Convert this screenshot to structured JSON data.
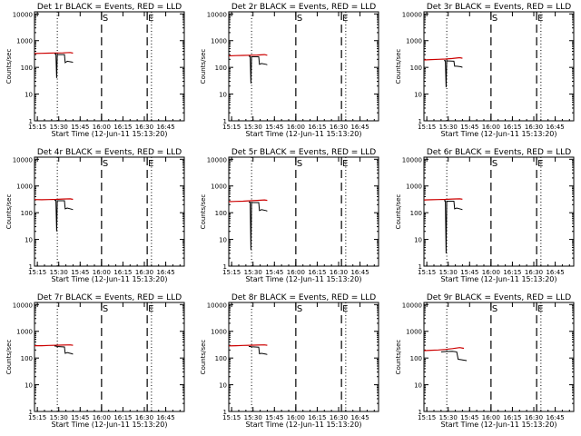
{
  "colors": {
    "events": "#000000",
    "lld": "#cc0000",
    "axes": "#000000",
    "background": "#ffffff"
  },
  "chart_data": [
    {
      "type": "line",
      "title": "Det 1r BLACK = Events, RED = LLD",
      "xlabel": "Start Time (12-Jun-11 15:13:20)",
      "ylabel": "Counts/sec",
      "ylog": true,
      "ylim": [
        1,
        12000
      ],
      "xlim": [
        "15:13",
        "16:58"
      ],
      "xticks": [
        "15:15",
        "15:30",
        "15:45",
        "16:00",
        "16:15",
        "16:30",
        "16:45"
      ],
      "yticks": [
        "1",
        "10",
        "100",
        "1000",
        "10000"
      ],
      "markers": [
        {
          "label": "",
          "time": "15:29",
          "style": "dotted"
        },
        {
          "label": "S",
          "time": "16:00",
          "style": "dashed"
        },
        {
          "label": "E",
          "time": "16:32",
          "style": "dashed"
        },
        {
          "label": "",
          "time": "16:35",
          "style": "dotted"
        }
      ],
      "series": [
        {
          "color": "red",
          "x": [
            "15:13",
            "15:18",
            "15:23",
            "15:28",
            "15:33",
            "15:38",
            "15:40"
          ],
          "y": [
            330,
            335,
            340,
            345,
            350,
            360,
            340
          ]
        },
        {
          "color": "black",
          "x": [
            "15:27",
            "15:28",
            "15:28.5",
            "15:29",
            "15:34",
            "15:34.5",
            "15:36",
            "15:39",
            "15:40"
          ],
          "y": [
            320,
            320,
            40,
            300,
            300,
            150,
            170,
            160,
            155
          ]
        }
      ]
    },
    {
      "type": "line",
      "title": "Det 2r BLACK = Events, RED = LLD",
      "xlabel": "Start Time (12-Jun-11 15:13:20)",
      "ylabel": "Counts/sec",
      "ylog": true,
      "ylim": [
        1,
        12000
      ],
      "xlim": [
        "15:13",
        "16:58"
      ],
      "xticks": [
        "15:15",
        "15:30",
        "15:45",
        "16:00",
        "16:15",
        "16:30",
        "16:45"
      ],
      "yticks": [
        "1",
        "10",
        "100",
        "1000",
        "10000"
      ],
      "markers": [
        {
          "label": "",
          "time": "15:29",
          "style": "dotted"
        },
        {
          "label": "S",
          "time": "16:00",
          "style": "dashed"
        },
        {
          "label": "E",
          "time": "16:32",
          "style": "dashed"
        },
        {
          "label": "",
          "time": "16:35",
          "style": "dotted"
        }
      ],
      "series": [
        {
          "color": "red",
          "x": [
            "15:13",
            "15:18",
            "15:23",
            "15:28",
            "15:33",
            "15:38",
            "15:40"
          ],
          "y": [
            270,
            275,
            280,
            285,
            290,
            300,
            285
          ]
        },
        {
          "color": "black",
          "x": [
            "15:27",
            "15:28",
            "15:28.5",
            "15:29",
            "15:34",
            "15:34.5",
            "15:36",
            "15:39",
            "15:40"
          ],
          "y": [
            260,
            260,
            25,
            250,
            250,
            130,
            140,
            130,
            125
          ]
        }
      ]
    },
    {
      "type": "line",
      "title": "Det 3r BLACK = Events, RED = LLD",
      "xlabel": "Start Time (12-Jun-11 15:13:20)",
      "ylabel": "Counts/sec",
      "ylog": true,
      "ylim": [
        1,
        12000
      ],
      "xlim": [
        "15:13",
        "16:58"
      ],
      "xticks": [
        "15:15",
        "15:30",
        "15:45",
        "16:00",
        "16:15",
        "16:30",
        "16:45"
      ],
      "yticks": [
        "1",
        "10",
        "100",
        "1000",
        "10000"
      ],
      "markers": [
        {
          "label": "",
          "time": "15:29",
          "style": "dotted"
        },
        {
          "label": "S",
          "time": "16:00",
          "style": "dashed"
        },
        {
          "label": "E",
          "time": "16:32",
          "style": "dashed"
        },
        {
          "label": "",
          "time": "16:35",
          "style": "dotted"
        }
      ],
      "series": [
        {
          "color": "red",
          "x": [
            "15:13",
            "15:18",
            "15:23",
            "15:28",
            "15:33",
            "15:38",
            "15:40"
          ],
          "y": [
            190,
            195,
            200,
            205,
            215,
            230,
            220
          ]
        },
        {
          "color": "black",
          "x": [
            "15:27",
            "15:28",
            "15:28.5",
            "15:29",
            "15:34",
            "15:34.5",
            "15:36",
            "15:39",
            "15:40"
          ],
          "y": [
            180,
            180,
            18,
            175,
            170,
            110,
            110,
            105,
            100
          ]
        }
      ]
    },
    {
      "type": "line",
      "title": "Det 4r BLACK = Events, RED = LLD",
      "xlabel": "Start Time (12-Jun-11 15:13:20)",
      "ylabel": "Counts/sec",
      "ylog": true,
      "ylim": [
        1,
        12000
      ],
      "xlim": [
        "15:13",
        "16:58"
      ],
      "xticks": [
        "15:15",
        "15:30",
        "15:45",
        "16:00",
        "16:15",
        "16:30",
        "16:45"
      ],
      "yticks": [
        "1",
        "10",
        "100",
        "1000",
        "10000"
      ],
      "markers": [
        {
          "label": "",
          "time": "15:29",
          "style": "dotted"
        },
        {
          "label": "S",
          "time": "16:00",
          "style": "dashed"
        },
        {
          "label": "E",
          "time": "16:32",
          "style": "dashed"
        },
        {
          "label": "",
          "time": "16:35",
          "style": "dotted"
        }
      ],
      "series": [
        {
          "color": "red",
          "x": [
            "15:13",
            "15:18",
            "15:23",
            "15:28",
            "15:33",
            "15:38",
            "15:40"
          ],
          "y": [
            310,
            305,
            310,
            315,
            325,
            330,
            315
          ]
        },
        {
          "color": "black",
          "x": [
            "15:27",
            "15:28",
            "15:28.5",
            "15:29",
            "15:34",
            "15:34.5",
            "15:36",
            "15:39",
            "15:40"
          ],
          "y": [
            290,
            290,
            20,
            280,
            280,
            140,
            150,
            135,
            130
          ]
        }
      ]
    },
    {
      "type": "line",
      "title": "Det 5r BLACK = Events, RED = LLD",
      "xlabel": "Start Time (12-Jun-11 15:13:20)",
      "ylabel": "Counts/sec",
      "ylog": true,
      "ylim": [
        1,
        12000
      ],
      "xlim": [
        "15:13",
        "16:58"
      ],
      "xticks": [
        "15:15",
        "15:30",
        "15:45",
        "16:00",
        "16:15",
        "16:30",
        "16:45"
      ],
      "yticks": [
        "1",
        "10",
        "100",
        "1000",
        "10000"
      ],
      "markers": [
        {
          "label": "",
          "time": "15:29",
          "style": "dotted"
        },
        {
          "label": "S",
          "time": "16:00",
          "style": "dashed"
        },
        {
          "label": "E",
          "time": "16:32",
          "style": "dashed"
        },
        {
          "label": "",
          "time": "16:35",
          "style": "dotted"
        }
      ],
      "series": [
        {
          "color": "red",
          "x": [
            "15:13",
            "15:18",
            "15:23",
            "15:28",
            "15:33",
            "15:38",
            "15:40"
          ],
          "y": [
            260,
            265,
            270,
            280,
            290,
            300,
            290
          ]
        },
        {
          "color": "black",
          "x": [
            "15:27",
            "15:28",
            "15:28.5",
            "15:29",
            "15:34",
            "15:34.5",
            "15:36",
            "15:39",
            "15:40"
          ],
          "y": [
            250,
            250,
            4,
            240,
            240,
            120,
            130,
            120,
            115
          ]
        }
      ]
    },
    {
      "type": "line",
      "title": "Det 6r BLACK = Events, RED = LLD",
      "xlabel": "Start Time (12-Jun-11 15:13:20)",
      "ylabel": "Counts/sec",
      "ylog": true,
      "ylim": [
        1,
        12000
      ],
      "xlim": [
        "15:13",
        "16:58"
      ],
      "xticks": [
        "15:15",
        "15:30",
        "15:45",
        "16:00",
        "16:15",
        "16:30",
        "16:45"
      ],
      "yticks": [
        "1",
        "10",
        "100",
        "1000",
        "10000"
      ],
      "markers": [
        {
          "label": "",
          "time": "15:29",
          "style": "dotted"
        },
        {
          "label": "S",
          "time": "16:00",
          "style": "dashed"
        },
        {
          "label": "E",
          "time": "16:32",
          "style": "dashed"
        },
        {
          "label": "",
          "time": "16:35",
          "style": "dotted"
        }
      ],
      "series": [
        {
          "color": "red",
          "x": [
            "15:13",
            "15:18",
            "15:23",
            "15:28",
            "15:33",
            "15:38",
            "15:40"
          ],
          "y": [
            300,
            305,
            310,
            315,
            325,
            330,
            320
          ]
        },
        {
          "color": "black",
          "x": [
            "15:27",
            "15:28",
            "15:28.5",
            "15:29",
            "15:34",
            "15:34.5",
            "15:36",
            "15:39",
            "15:40"
          ],
          "y": [
            280,
            280,
            3,
            270,
            270,
            140,
            150,
            135,
            130
          ]
        }
      ]
    },
    {
      "type": "line",
      "title": "Det 7r BLACK = Events, RED = LLD",
      "xlabel": "Start Time (12-Jun-11 15:13:20)",
      "ylabel": "Counts/sec",
      "ylog": true,
      "ylim": [
        1,
        12000
      ],
      "xlim": [
        "15:13",
        "16:58"
      ],
      "xticks": [
        "15:15",
        "15:30",
        "15:45",
        "16:00",
        "16:15",
        "16:30",
        "16:45"
      ],
      "yticks": [
        "1",
        "10",
        "100",
        "1000",
        "10000"
      ],
      "markers": [
        {
          "label": "",
          "time": "15:29",
          "style": "dotted"
        },
        {
          "label": "S",
          "time": "16:00",
          "style": "dashed"
        },
        {
          "label": "E",
          "time": "16:32",
          "style": "dashed"
        },
        {
          "label": "",
          "time": "16:35",
          "style": "dotted"
        }
      ],
      "series": [
        {
          "color": "red",
          "x": [
            "15:13",
            "15:18",
            "15:23",
            "15:28",
            "15:33",
            "15:38",
            "15:40"
          ],
          "y": [
            290,
            290,
            295,
            300,
            305,
            310,
            300
          ]
        },
        {
          "color": "black",
          "x": [
            "15:27",
            "15:28",
            "15:29",
            "15:34",
            "15:34.5",
            "15:36",
            "15:39",
            "15:40"
          ],
          "y": [
            280,
            280,
            270,
            260,
            150,
            160,
            145,
            140
          ]
        }
      ]
    },
    {
      "type": "line",
      "title": "Det 8r BLACK = Events, RED = LLD",
      "xlabel": "Start Time (12-Jun-11 15:13:20)",
      "ylabel": "Counts/sec",
      "ylog": true,
      "ylim": [
        1,
        12000
      ],
      "xlim": [
        "15:13",
        "16:58"
      ],
      "xticks": [
        "15:15",
        "15:30",
        "15:45",
        "16:00",
        "16:15",
        "16:30",
        "16:45"
      ],
      "yticks": [
        "1",
        "10",
        "100",
        "1000",
        "10000"
      ],
      "markers": [
        {
          "label": "",
          "time": "15:29",
          "style": "dotted"
        },
        {
          "label": "S",
          "time": "16:00",
          "style": "dashed"
        },
        {
          "label": "E",
          "time": "16:32",
          "style": "dashed"
        },
        {
          "label": "",
          "time": "16:35",
          "style": "dotted"
        }
      ],
      "series": [
        {
          "color": "red",
          "x": [
            "15:13",
            "15:18",
            "15:23",
            "15:28",
            "15:33",
            "15:38",
            "15:40"
          ],
          "y": [
            285,
            290,
            295,
            300,
            305,
            310,
            300
          ]
        },
        {
          "color": "black",
          "x": [
            "15:27",
            "15:28",
            "15:29",
            "15:34",
            "15:34.5",
            "15:36",
            "15:39",
            "15:40"
          ],
          "y": [
            270,
            270,
            265,
            255,
            145,
            150,
            140,
            135
          ]
        }
      ]
    },
    {
      "type": "line",
      "title": "Det 9r BLACK = Events, RED = LLD",
      "xlabel": "Start Time (12-Jun-11 15:13:20)",
      "ylabel": "Counts/sec",
      "ylog": true,
      "ylim": [
        1,
        12000
      ],
      "xlim": [
        "15:13",
        "16:58"
      ],
      "xticks": [
        "15:15",
        "15:30",
        "15:45",
        "16:00",
        "16:15",
        "16:30",
        "16:45"
      ],
      "yticks": [
        "1",
        "10",
        "100",
        "1000",
        "10000"
      ],
      "markers": [
        {
          "label": "",
          "time": "15:29",
          "style": "dotted"
        },
        {
          "label": "S",
          "time": "16:00",
          "style": "dashed"
        },
        {
          "label": "E",
          "time": "16:32",
          "style": "dashed"
        },
        {
          "label": "",
          "time": "16:35",
          "style": "dotted"
        }
      ],
      "series": [
        {
          "color": "red",
          "x": [
            "15:13",
            "15:18",
            "15:23",
            "15:28",
            "15:33",
            "15:38",
            "15:41"
          ],
          "y": [
            190,
            195,
            200,
            210,
            225,
            245,
            230
          ]
        },
        {
          "color": "black",
          "x": [
            "15:25",
            "15:28",
            "15:33",
            "15:36",
            "15:37",
            "15:40",
            "15:43"
          ],
          "y": [
            170,
            175,
            180,
            170,
            90,
            85,
            80
          ]
        }
      ]
    }
  ]
}
